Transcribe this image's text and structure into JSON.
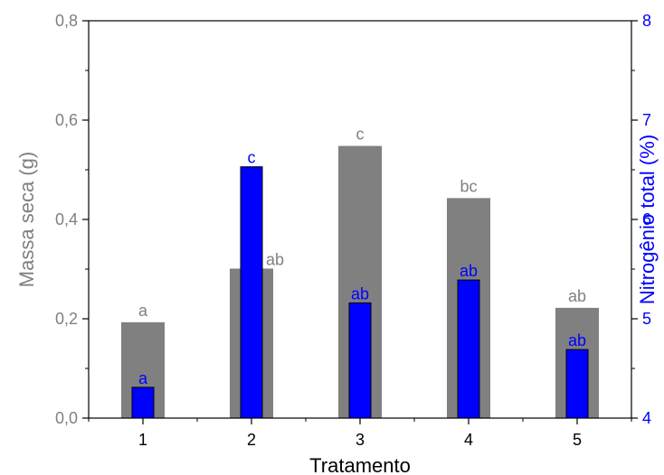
{
  "chart_data": {
    "type": "bar",
    "xlabel": "Tratamento",
    "categories": [
      "1",
      "2",
      "3",
      "4",
      "5"
    ],
    "y_left": {
      "label": "Massa seca (g)",
      "range": [
        0.0,
        0.8
      ],
      "ticks": [
        0.0,
        0.2,
        0.4,
        0.6,
        0.8
      ],
      "tick_labels": [
        "0,0",
        "0,2",
        "0,4",
        "0,6",
        "0,8"
      ],
      "color": "#808080"
    },
    "y_right": {
      "label": "Nitrogênio total (%)",
      "range": [
        4,
        8
      ],
      "ticks": [
        4,
        5,
        6,
        7,
        8
      ],
      "tick_labels": [
        "4",
        "5",
        "6",
        "7",
        "8"
      ],
      "color": "#0000ff"
    },
    "series": [
      {
        "axis": "left",
        "color": "#808080",
        "values": [
          0.193,
          0.301,
          0.548,
          0.443,
          0.222
        ],
        "labels": [
          "a",
          "ab",
          "c",
          "bc",
          "ab"
        ]
      },
      {
        "axis": "right",
        "color": "#0000ff",
        "values": [
          4.31,
          6.53,
          5.16,
          5.39,
          4.69
        ],
        "labels": [
          "a",
          "c",
          "ab",
          "ab",
          "ab"
        ]
      }
    ],
    "grid": false,
    "legend": "none"
  }
}
